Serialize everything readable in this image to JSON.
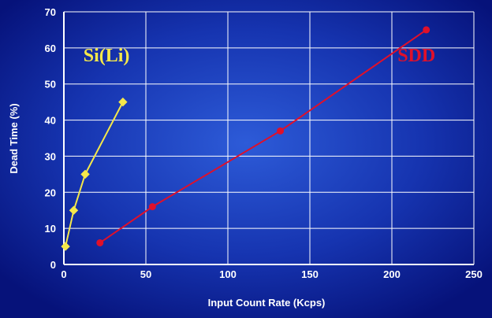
{
  "chart_data": {
    "type": "line",
    "xlabel": "Input Count Rate (Kcps)",
    "ylabel": "Dead Time (%)",
    "xlim": [
      0,
      250
    ],
    "ylim": [
      0,
      70
    ],
    "xticks": [
      0,
      50,
      100,
      150,
      200,
      250
    ],
    "yticks": [
      0,
      10,
      20,
      30,
      40,
      50,
      60,
      70
    ],
    "grid": true,
    "series": [
      {
        "name": "Si(Li)",
        "color": "#f5e84a",
        "marker": "diamond",
        "points": [
          [
            1,
            5
          ],
          [
            6,
            15
          ],
          [
            13,
            25
          ],
          [
            36,
            45
          ]
        ],
        "label_anchor": [
          26,
          58
        ]
      },
      {
        "name": "SDD",
        "color": "#e0102a",
        "marker": "circle",
        "points": [
          [
            22,
            6
          ],
          [
            54,
            16
          ],
          [
            132,
            37
          ],
          [
            221,
            65
          ]
        ],
        "label_anchor": [
          215,
          58
        ]
      }
    ]
  }
}
